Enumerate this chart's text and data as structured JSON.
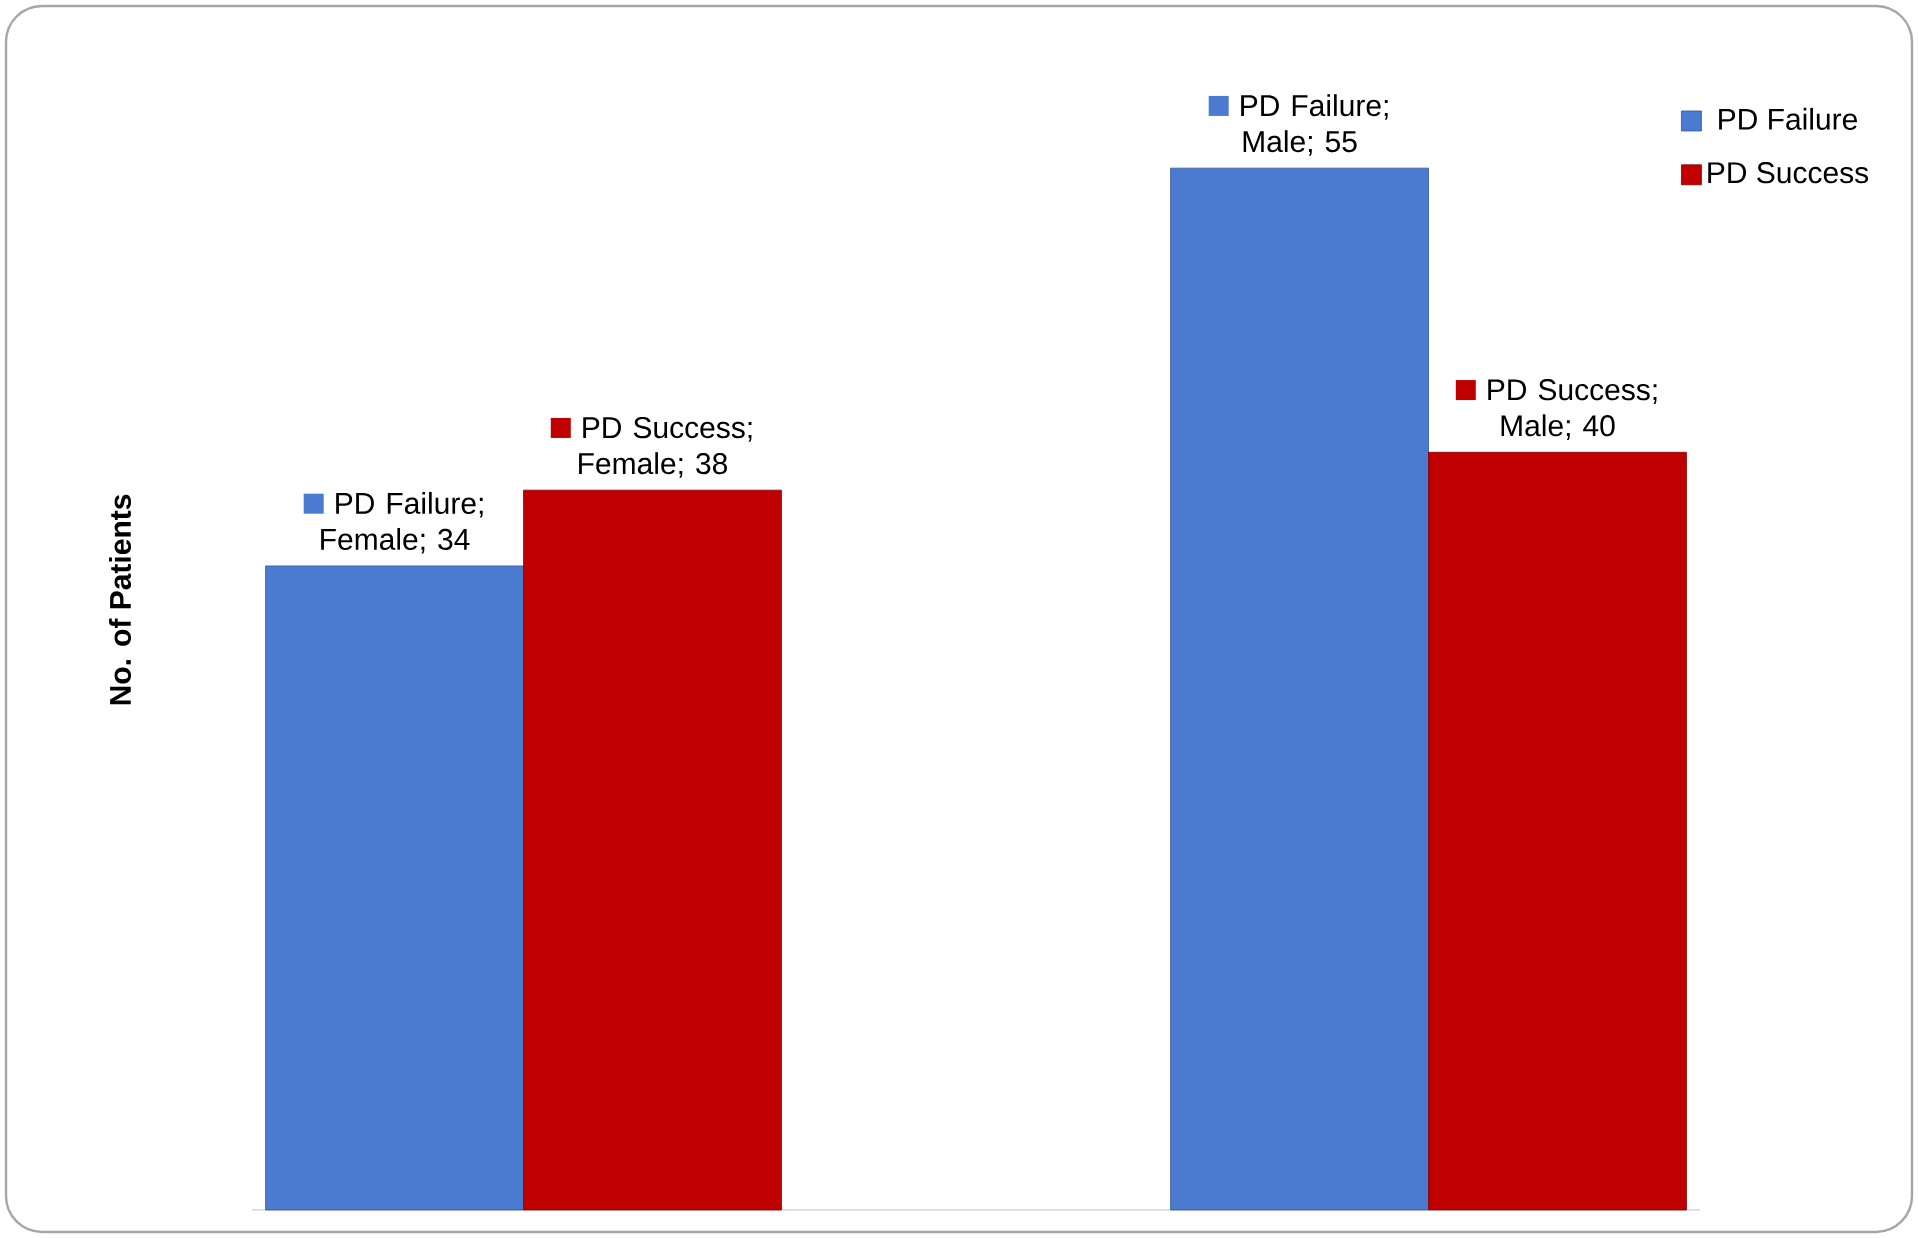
{
  "chart_data": {
    "type": "bar",
    "ylabel": "No. of Patients",
    "categories": [
      null,
      null
    ],
    "legend": "top right",
    "series": [
      {
        "name": "PD Failure",
        "color": "#4a7bd0",
        "values": [
          34,
          55
        ],
        "value_labels": [
          "PD Failure; Female; 34",
          "PD Failure; Male; 55"
        ]
      },
      {
        "name": "PD Success",
        "color": "#c00000",
        "values": [
          38,
          40
        ],
        "value_labels": [
          "PD Success; Female; 38",
          "PD Success; Male; 40"
        ]
      }
    ]
  }
}
